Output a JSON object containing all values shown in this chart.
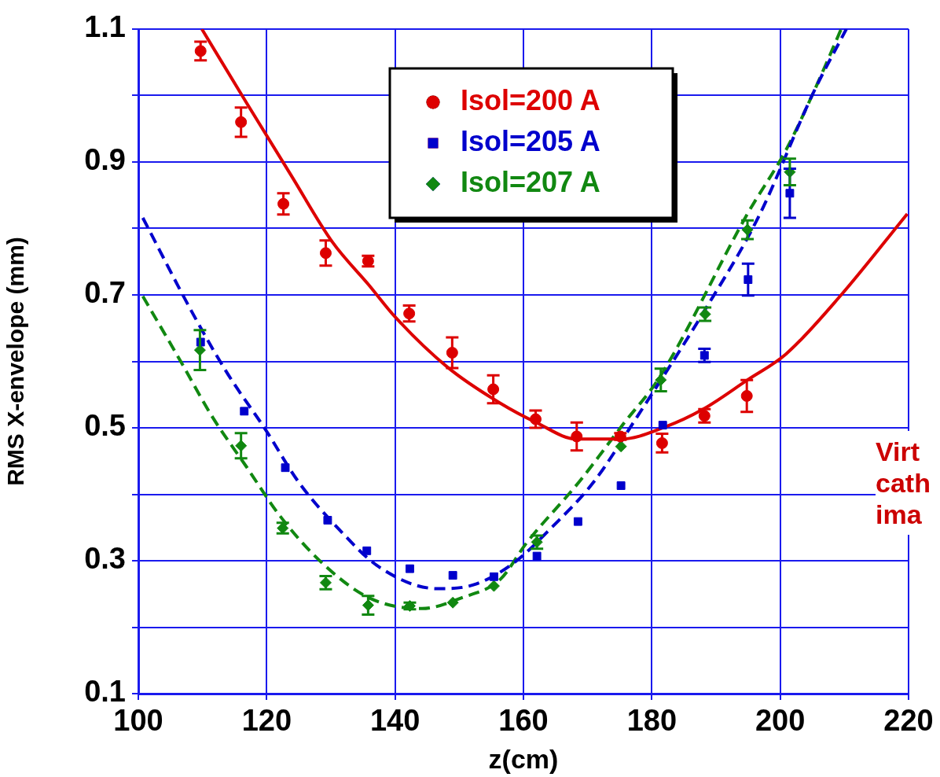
{
  "chart_data": {
    "type": "scatter",
    "xlabel": "z(cm)",
    "ylabel": "RMS X-envelope (mm)",
    "xlim": [
      100,
      220
    ],
    "xticks": [
      100,
      120,
      140,
      160,
      180,
      200,
      220
    ],
    "ylim": [
      0.1,
      1.1
    ],
    "yticks": [
      0.1,
      {
        "value": 0.2,
        "label": null
      },
      0.3,
      {
        "value": 0.4,
        "label": null
      },
      0.5,
      {
        "value": 0.6,
        "label": null
      },
      0.7,
      {
        "value": 0.8,
        "label": null
      },
      0.9,
      {
        "value": 1.0,
        "label": null
      },
      1.1
    ],
    "grid": true,
    "legend": "top",
    "annotations": [
      "Virt cath ima"
    ],
    "series": [
      {
        "name": "Isol=200 A",
        "color": "#dd0000",
        "marker": "circle",
        "x": [
          109.7,
          116.0,
          122.6,
          129.2,
          135.8,
          142.2,
          148.9,
          155.3,
          161.9,
          168.3,
          175.1,
          181.6,
          188.2,
          194.8
        ],
        "values": [
          1.067,
          0.96,
          0.837,
          0.763,
          0.751,
          0.672,
          0.613,
          0.558,
          0.513,
          0.487,
          0.487,
          0.477,
          0.518,
          0.548
        ],
        "errors": [
          0.014,
          0.022,
          0.016,
          0.019,
          0.008,
          0.012,
          0.023,
          0.021,
          0.013,
          0.021,
          0.005,
          0.014,
          0.01,
          0.024
        ]
      },
      {
        "name": "Isol=205 A",
        "color": "#0000cc",
        "marker": "square",
        "x": [
          109.7,
          116.5,
          122.9,
          129.5,
          135.6,
          142.3,
          149.0,
          155.4,
          162.1,
          168.5,
          175.2,
          181.7,
          188.2,
          195.0,
          201.5
        ],
        "values": [
          0.629,
          0.525,
          0.44,
          0.361,
          0.315,
          0.288,
          0.278,
          0.276,
          0.307,
          0.359,
          0.413,
          0.504,
          0.609,
          0.723,
          0.853
        ],
        "errors": [
          null,
          null,
          null,
          null,
          null,
          null,
          null,
          null,
          null,
          null,
          null,
          null,
          0.01,
          0.024,
          0.037
        ]
      },
      {
        "name": "Isol=207 A",
        "color": "#118811",
        "marker": "diamond",
        "x": [
          109.6,
          116.0,
          122.5,
          129.2,
          135.8,
          142.3,
          149.0,
          155.4,
          162.1,
          175.2,
          181.4,
          188.3,
          194.9,
          201.5
        ],
        "values": [
          0.617,
          0.473,
          0.349,
          0.267,
          0.233,
          0.232,
          0.237,
          0.262,
          0.328,
          0.472,
          0.572,
          0.671,
          0.798,
          0.885
        ],
        "errors": [
          0.03,
          0.019,
          0.008,
          0.01,
          0.014,
          0.005,
          null,
          null,
          0.01,
          null,
          0.017,
          0.01,
          0.014,
          0.02
        ]
      },
      {
        "type": "line",
        "color": "#dd0000",
        "line_style": "solid",
        "x": [
          109.9,
          116.8,
          123.8,
          130.2,
          136,
          140,
          148.2,
          156.4,
          162,
          168.3,
          175.2,
          182,
          188,
          194.9,
          200.9,
          209.5,
          219.8
        ],
        "values": [
          1.1,
          0.99,
          0.88,
          0.78,
          0.714,
          0.667,
          0.591,
          0.537,
          0.508,
          0.483,
          0.483,
          0.501,
          0.528,
          0.572,
          0.611,
          0.7,
          0.822
        ]
      },
      {
        "type": "line",
        "color": "#0000cc",
        "line_style": "dashed",
        "x": [
          100.7,
          108.6,
          114,
          119.7,
          125,
          131.1,
          137.6,
          146.6,
          152.3,
          158.4,
          164.5,
          170.9,
          177.8,
          188,
          196.6,
          205.2,
          210.3
        ],
        "values": [
          0.816,
          0.67,
          0.58,
          0.499,
          0.418,
          0.349,
          0.29,
          0.258,
          0.264,
          0.296,
          0.351,
          0.418,
          0.518,
          0.673,
          0.817,
          1.005,
          1.1
        ]
      },
      {
        "type": "line",
        "color": "#118811",
        "line_style": "dashed",
        "x": [
          100.7,
          106.6,
          111.5,
          116.8,
          122.1,
          128.7,
          136,
          144.2,
          150.3,
          156.4,
          160.5,
          168.7,
          175.5,
          181.2,
          194.9,
          200.9,
          205.2,
          209.5
        ],
        "values": [
          0.698,
          0.6,
          0.517,
          0.442,
          0.367,
          0.296,
          0.244,
          0.228,
          0.244,
          0.272,
          0.327,
          0.419,
          0.505,
          0.576,
          0.822,
          0.918,
          1.005,
          1.1
        ]
      }
    ]
  }
}
